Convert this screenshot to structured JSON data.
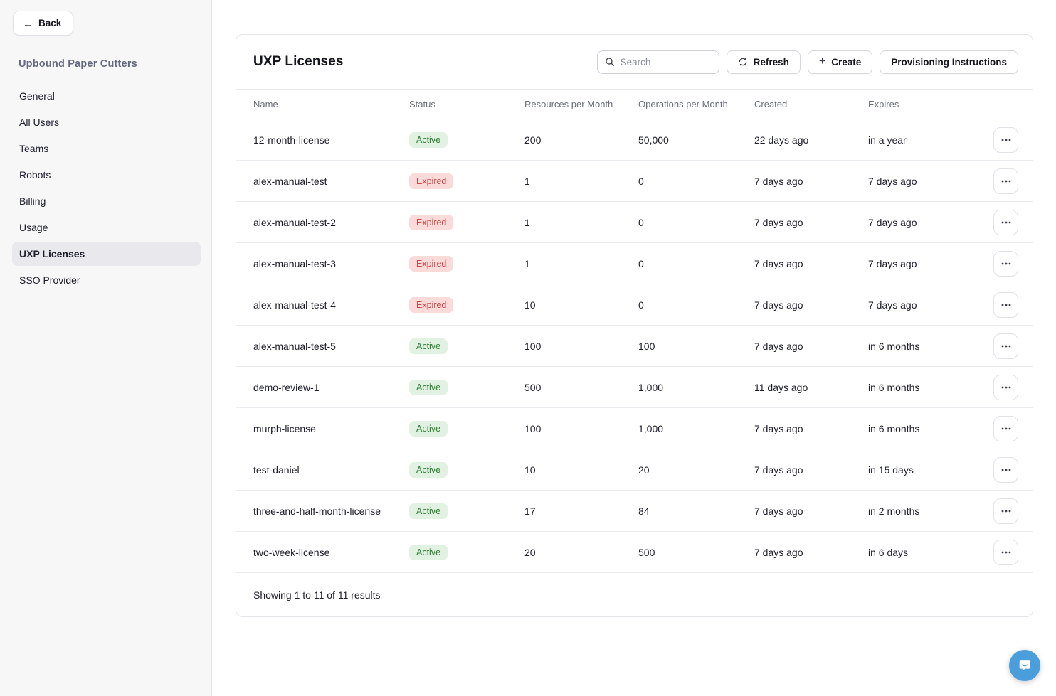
{
  "sidebar": {
    "back_label": "Back",
    "org_title": "Upbound Paper Cutters",
    "items": [
      {
        "label": "General",
        "active": false
      },
      {
        "label": "All Users",
        "active": false
      },
      {
        "label": "Teams",
        "active": false
      },
      {
        "label": "Robots",
        "active": false
      },
      {
        "label": "Billing",
        "active": false
      },
      {
        "label": "Usage",
        "active": false
      },
      {
        "label": "UXP Licenses",
        "active": true
      },
      {
        "label": "SSO Provider",
        "active": false
      }
    ]
  },
  "header": {
    "title": "UXP Licenses",
    "search_placeholder": "Search",
    "refresh_label": "Refresh",
    "create_label": "Create",
    "provisioning_label": "Provisioning Instructions"
  },
  "table": {
    "columns": [
      "Name",
      "Status",
      "Resources per Month",
      "Operations per Month",
      "Created",
      "Expires"
    ],
    "rows": [
      {
        "name": "12-month-license",
        "status": "Active",
        "resources": "200",
        "operations": "50,000",
        "created": "22 days ago",
        "expires": "in a year"
      },
      {
        "name": "alex-manual-test",
        "status": "Expired",
        "resources": "1",
        "operations": "0",
        "created": "7 days ago",
        "expires": "7 days ago"
      },
      {
        "name": "alex-manual-test-2",
        "status": "Expired",
        "resources": "1",
        "operations": "0",
        "created": "7 days ago",
        "expires": "7 days ago"
      },
      {
        "name": "alex-manual-test-3",
        "status": "Expired",
        "resources": "1",
        "operations": "0",
        "created": "7 days ago",
        "expires": "7 days ago"
      },
      {
        "name": "alex-manual-test-4",
        "status": "Expired",
        "resources": "10",
        "operations": "0",
        "created": "7 days ago",
        "expires": "7 days ago"
      },
      {
        "name": "alex-manual-test-5",
        "status": "Active",
        "resources": "100",
        "operations": "100",
        "created": "7 days ago",
        "expires": "in 6 months"
      },
      {
        "name": "demo-review-1",
        "status": "Active",
        "resources": "500",
        "operations": "1,000",
        "created": "11 days ago",
        "expires": "in 6 months"
      },
      {
        "name": "murph-license",
        "status": "Active",
        "resources": "100",
        "operations": "1,000",
        "created": "7 days ago",
        "expires": "in 6 months"
      },
      {
        "name": "test-daniel",
        "status": "Active",
        "resources": "10",
        "operations": "20",
        "created": "7 days ago",
        "expires": "in 15 days"
      },
      {
        "name": "three-and-half-month-license",
        "status": "Active",
        "resources": "17",
        "operations": "84",
        "created": "7 days ago",
        "expires": "in 2 months"
      },
      {
        "name": "two-week-license",
        "status": "Active",
        "resources": "20",
        "operations": "500",
        "created": "7 days ago",
        "expires": "in 6 days"
      }
    ],
    "footer": "Showing 1 to 11 of 11 results"
  },
  "icons": {
    "back": "back-arrow-icon",
    "search": "search-icon",
    "refresh": "refresh-icon",
    "plus": "plus-icon",
    "ellipsis": "ellipsis-icon",
    "chat": "chat-bubble-icon"
  },
  "colors": {
    "active_badge_bg": "#e1f2e3",
    "active_badge_text": "#2e7d32",
    "expired_badge_bg": "#fbdbd9",
    "expired_badge_text": "#d14343",
    "sidebar_bg": "#f7f7f8",
    "selected_item_bg": "#e8e8ed",
    "org_title_text": "#646981",
    "chat_button": "#4a9edb"
  }
}
